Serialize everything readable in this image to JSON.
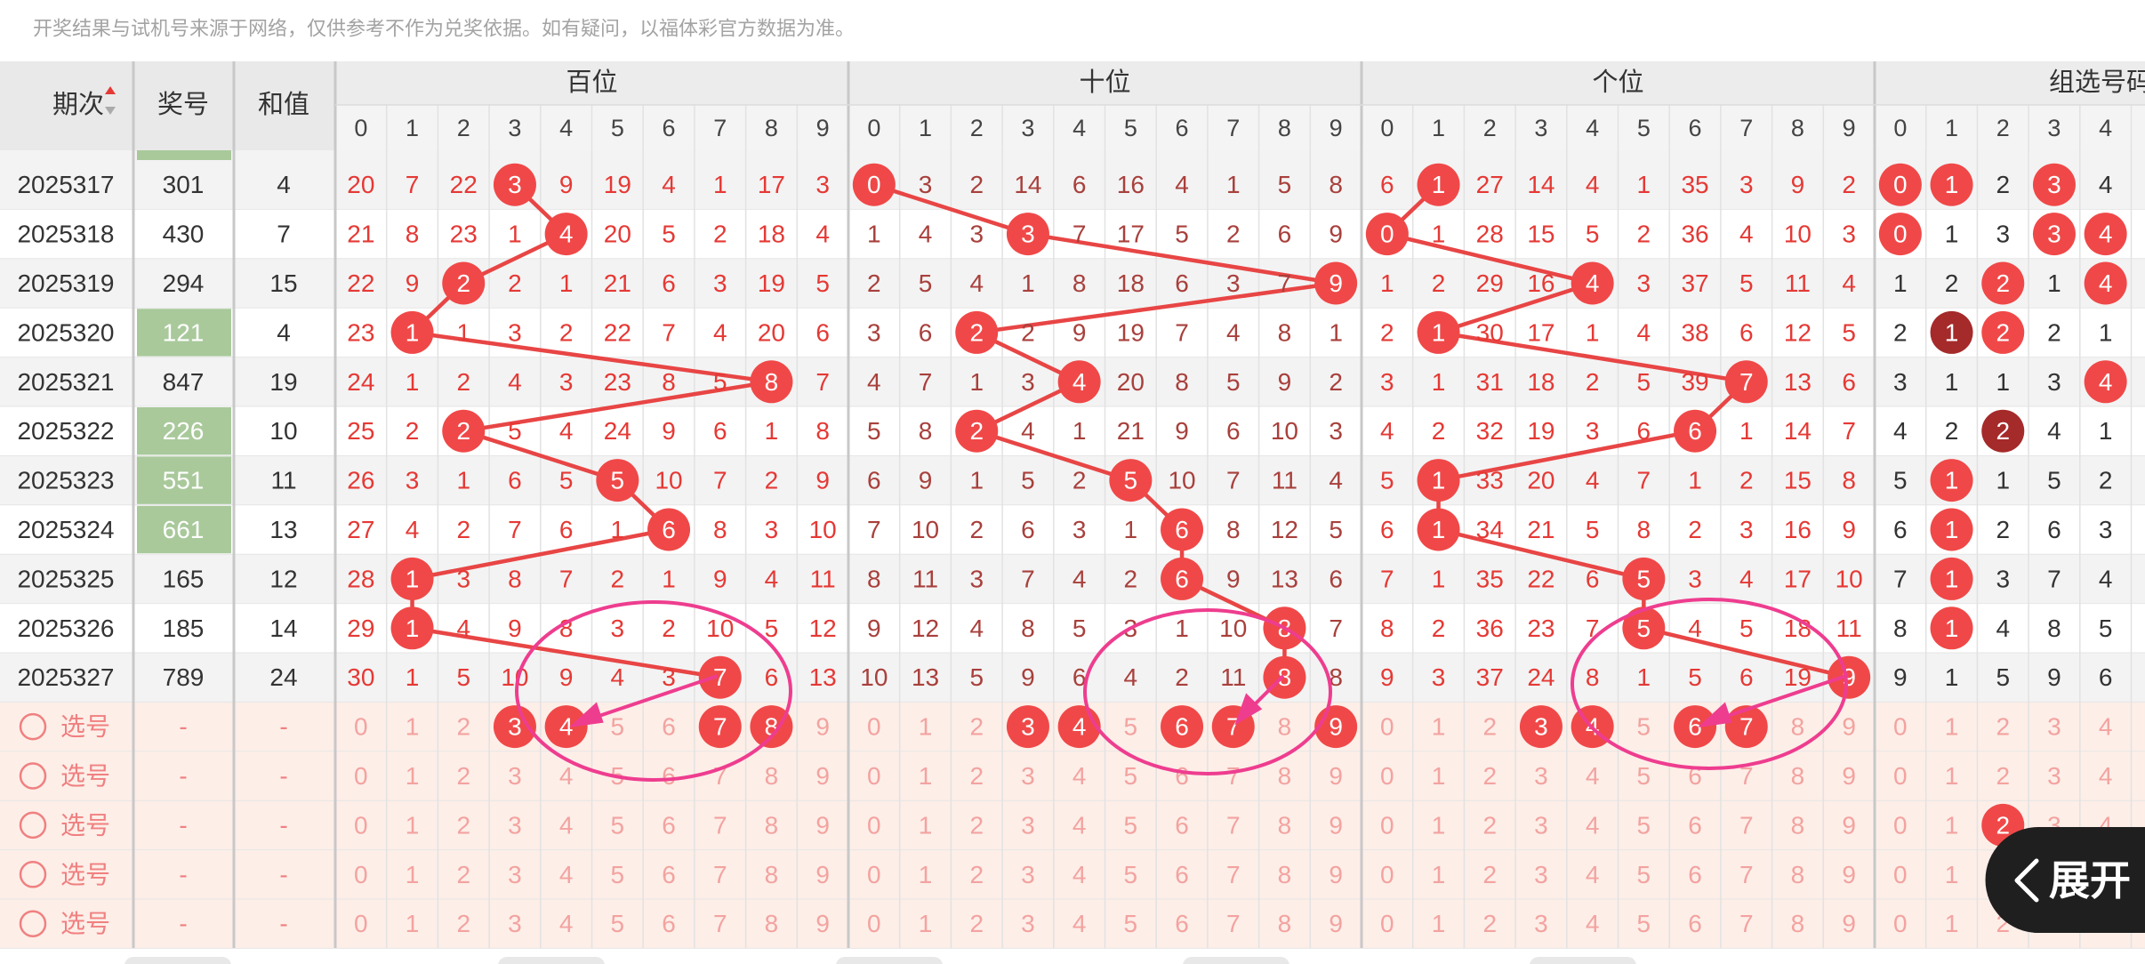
{
  "notice": "开奖结果与试机号来源于网络，仅供参考不作为兑奖依据。如有疑问，以福体彩官方数据为准。",
  "header": {
    "issue": "期次",
    "number": "奖号",
    "sum": "和值",
    "sections": [
      {
        "title": "百位",
        "digits": [
          0,
          1,
          2,
          3,
          4,
          5,
          6,
          7,
          8,
          9
        ]
      },
      {
        "title": "十位",
        "digits": [
          0,
          1,
          2,
          3,
          4,
          5,
          6,
          7,
          8,
          9
        ]
      },
      {
        "title": "个位",
        "digits": [
          0,
          1,
          2,
          3,
          4,
          5,
          6,
          7,
          8,
          9
        ]
      },
      {
        "title": "组选号码",
        "digits": [
          0,
          1,
          2,
          3,
          4
        ]
      }
    ]
  },
  "rows": [
    {
      "issue": "2025317",
      "number": "301",
      "sum": 4,
      "hundreds": [
        20,
        7,
        22,
        3,
        9,
        19,
        4,
        1,
        17,
        3
      ],
      "tens": [
        0,
        3,
        2,
        14,
        6,
        16,
        4,
        1,
        5,
        8
      ],
      "units": [
        6,
        1,
        27,
        14,
        4,
        1,
        35,
        3,
        9,
        2
      ],
      "group": [
        0,
        1,
        2,
        3,
        4
      ]
    },
    {
      "issue": "2025318",
      "number": "430",
      "sum": 7,
      "hundreds": [
        21,
        8,
        23,
        1,
        4,
        20,
        5,
        2,
        18,
        4
      ],
      "tens": [
        1,
        4,
        3,
        3,
        7,
        17,
        5,
        2,
        6,
        9
      ],
      "units": [
        0,
        1,
        28,
        15,
        5,
        2,
        36,
        4,
        10,
        3
      ],
      "group": [
        0,
        1,
        3,
        3,
        4
      ]
    },
    {
      "issue": "2025319",
      "number": "294",
      "sum": 15,
      "hundreds": [
        22,
        9,
        2,
        2,
        1,
        21,
        6,
        3,
        19,
        5
      ],
      "tens": [
        2,
        5,
        4,
        1,
        8,
        18,
        6,
        3,
        7,
        9
      ],
      "units": [
        1,
        2,
        29,
        16,
        4,
        3,
        37,
        5,
        11,
        4
      ],
      "group": [
        1,
        2,
        2,
        1,
        4
      ]
    },
    {
      "issue": "2025320",
      "number": "121",
      "sum": 4,
      "hundreds": [
        23,
        1,
        1,
        3,
        2,
        22,
        7,
        4,
        20,
        6
      ],
      "tens": [
        3,
        6,
        2,
        2,
        9,
        19,
        7,
        4,
        8,
        1
      ],
      "units": [
        2,
        1,
        30,
        17,
        1,
        4,
        38,
        6,
        12,
        5
      ],
      "group": [
        2,
        1,
        2,
        2,
        1
      ]
    },
    {
      "issue": "2025321",
      "number": "847",
      "sum": 19,
      "hundreds": [
        24,
        1,
        2,
        4,
        3,
        23,
        8,
        5,
        8,
        7
      ],
      "tens": [
        4,
        7,
        1,
        3,
        4,
        20,
        8,
        5,
        9,
        2
      ],
      "units": [
        3,
        1,
        31,
        18,
        2,
        5,
        39,
        7,
        13,
        6
      ],
      "group": [
        3,
        1,
        1,
        3,
        4
      ]
    },
    {
      "issue": "2025322",
      "number": "226",
      "sum": 10,
      "hundreds": [
        25,
        2,
        2,
        5,
        4,
        24,
        9,
        6,
        1,
        8
      ],
      "tens": [
        5,
        8,
        2,
        4,
        1,
        21,
        9,
        6,
        10,
        3
      ],
      "units": [
        4,
        2,
        32,
        19,
        3,
        6,
        6,
        1,
        14,
        7
      ],
      "group": [
        4,
        2,
        2,
        4,
        1
      ]
    },
    {
      "issue": "2025323",
      "number": "551",
      "sum": 11,
      "hundreds": [
        26,
        3,
        1,
        6,
        5,
        5,
        10,
        7,
        2,
        9
      ],
      "tens": [
        6,
        9,
        1,
        5,
        2,
        5,
        10,
        7,
        11,
        4
      ],
      "units": [
        5,
        1,
        33,
        20,
        4,
        7,
        1,
        2,
        15,
        8
      ],
      "group": [
        5,
        1,
        1,
        5,
        2
      ]
    },
    {
      "issue": "2025324",
      "number": "661",
      "sum": 13,
      "hundreds": [
        27,
        4,
        2,
        7,
        6,
        1,
        6,
        8,
        3,
        10
      ],
      "tens": [
        7,
        10,
        2,
        6,
        3,
        1,
        6,
        8,
        12,
        5
      ],
      "units": [
        6,
        1,
        34,
        21,
        5,
        8,
        2,
        3,
        16,
        9
      ],
      "group": [
        6,
        1,
        2,
        6,
        3
      ]
    },
    {
      "issue": "2025325",
      "number": "165",
      "sum": 12,
      "hundreds": [
        28,
        1,
        3,
        8,
        7,
        2,
        1,
        9,
        4,
        11
      ],
      "tens": [
        8,
        11,
        3,
        7,
        4,
        2,
        6,
        9,
        13,
        6
      ],
      "units": [
        7,
        1,
        35,
        22,
        6,
        5,
        3,
        4,
        17,
        10
      ],
      "group": [
        7,
        1,
        3,
        7,
        4
      ]
    },
    {
      "issue": "2025326",
      "number": "185",
      "sum": 14,
      "hundreds": [
        29,
        1,
        4,
        9,
        8,
        3,
        2,
        10,
        5,
        12
      ],
      "tens": [
        9,
        12,
        4,
        8,
        5,
        3,
        1,
        10,
        8,
        7
      ],
      "units": [
        8,
        2,
        36,
        23,
        7,
        5,
        4,
        5,
        18,
        11
      ],
      "group": [
        8,
        1,
        4,
        8,
        5
      ]
    },
    {
      "issue": "2025327",
      "number": "789",
      "sum": 24,
      "hundreds": [
        30,
        1,
        5,
        10,
        9,
        4,
        3,
        7,
        6,
        13
      ],
      "tens": [
        10,
        13,
        5,
        9,
        6,
        4,
        2,
        11,
        8,
        8
      ],
      "units": [
        9,
        3,
        37,
        24,
        8,
        1,
        5,
        6,
        19,
        9
      ],
      "group": [
        9,
        1,
        5,
        9,
        6
      ]
    }
  ],
  "select_rows": [
    {
      "label": "选号",
      "number": "-",
      "sum": "-",
      "hundreds": [
        0,
        1,
        2,
        3,
        4,
        5,
        6,
        7,
        8,
        9
      ],
      "tens": [
        0,
        1,
        2,
        3,
        4,
        5,
        6,
        7,
        8,
        9
      ],
      "units": [
        0,
        1,
        2,
        3,
        4,
        5,
        6,
        7,
        8,
        9
      ],
      "group": [
        0,
        1,
        2,
        3,
        4
      ],
      "picked": {
        "hundreds": [
          3,
          4,
          7,
          8
        ],
        "tens": [
          3,
          4,
          6,
          7,
          9
        ],
        "units": [
          3,
          4,
          6,
          7
        ],
        "group": []
      }
    },
    {
      "label": "选号",
      "number": "-",
      "sum": "-",
      "hundreds": [
        0,
        1,
        2,
        3,
        4,
        5,
        6,
        7,
        8,
        9
      ],
      "tens": [
        0,
        1,
        2,
        3,
        4,
        5,
        6,
        7,
        8,
        9
      ],
      "units": [
        0,
        1,
        2,
        3,
        4,
        5,
        6,
        7,
        8,
        9
      ],
      "group": [
        0,
        1,
        2,
        3,
        4
      ],
      "picked": {
        "hundreds": [],
        "tens": [],
        "units": [],
        "group": []
      }
    },
    {
      "label": "选号",
      "number": "-",
      "sum": "-",
      "hundreds": [
        0,
        1,
        2,
        3,
        4,
        5,
        6,
        7,
        8,
        9
      ],
      "tens": [
        0,
        1,
        2,
        3,
        4,
        5,
        6,
        7,
        8,
        9
      ],
      "units": [
        0,
        1,
        2,
        3,
        4,
        5,
        6,
        7,
        8,
        9
      ],
      "group": [
        0,
        1,
        2,
        3,
        4
      ],
      "picked": {
        "hundreds": [],
        "tens": [],
        "units": [],
        "group": [
          2
        ]
      }
    },
    {
      "label": "选号",
      "number": "-",
      "sum": "-",
      "hundreds": [
        0,
        1,
        2,
        3,
        4,
        5,
        6,
        7,
        8,
        9
      ],
      "tens": [
        0,
        1,
        2,
        3,
        4,
        5,
        6,
        7,
        8,
        9
      ],
      "units": [
        0,
        1,
        2,
        3,
        4,
        5,
        6,
        7,
        8,
        9
      ],
      "group": [
        0,
        1,
        2,
        3,
        4
      ],
      "picked": {
        "hundreds": [],
        "tens": [],
        "units": [],
        "group": []
      }
    },
    {
      "label": "选号",
      "number": "-",
      "sum": "-",
      "hundreds": [
        0,
        1,
        2,
        3,
        4,
        5,
        6,
        7,
        8,
        9
      ],
      "tens": [
        0,
        1,
        2,
        3,
        4,
        5,
        6,
        7,
        8,
        9
      ],
      "units": [
        0,
        1,
        2,
        3,
        4,
        5,
        6,
        7,
        8,
        9
      ],
      "group": [
        0,
        1,
        2,
        3,
        4
      ],
      "picked": {
        "hundreds": [],
        "tens": [],
        "units": [],
        "group": []
      }
    }
  ],
  "expand_button": "展开"
}
